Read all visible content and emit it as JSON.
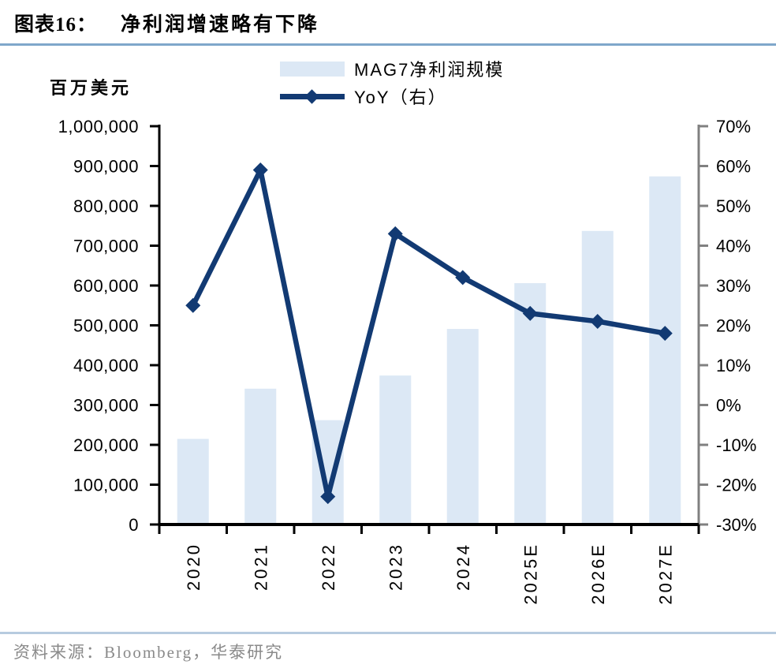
{
  "header": {
    "label": "图表16：",
    "title": "净利润增速略有下降"
  },
  "legend": [
    {
      "label": "MAG7净利润规模",
      "swatch": "bar-swatch"
    },
    {
      "label": "YoY（右）",
      "swatch": "line-swatch"
    }
  ],
  "chart_data": {
    "type": "combo",
    "title": "净利润增速略有下降",
    "categories": [
      "2020",
      "2021",
      "2022",
      "2023",
      "2024",
      "2025E",
      "2026E",
      "2027E"
    ],
    "series": [
      {
        "name": "MAG7净利润规模",
        "type": "bar",
        "axis": "left",
        "values": [
          215000,
          341000,
          262000,
          374000,
          491000,
          606000,
          737000,
          874000
        ]
      },
      {
        "name": "YoY（右）",
        "type": "line",
        "axis": "right",
        "unit": "%",
        "values": [
          25,
          59,
          -23,
          43,
          32,
          23,
          21,
          18
        ]
      }
    ],
    "left_axis": {
      "title": "百万美元",
      "min": 0,
      "max": 1000000,
      "step": 100000,
      "tick_labels": [
        "1,000,000",
        "900,000",
        "800,000",
        "700,000",
        "600,000",
        "500,000",
        "400,000",
        "300,000",
        "200,000",
        "100,000",
        "0"
      ]
    },
    "right_axis": {
      "min": -30,
      "max": 70,
      "step": 10,
      "tick_labels": [
        "70%",
        "60%",
        "50%",
        "40%",
        "30%",
        "20%",
        "10%",
        "0%",
        "-10%",
        "-20%",
        "-30%"
      ]
    },
    "legend_position": "top",
    "grid": false
  },
  "footer": {
    "source": "资料来源：Bloomberg，华泰研究"
  },
  "colors": {
    "bar": "#dce8f5",
    "line": "#123a73",
    "axis": "#000000",
    "right_axis": "#808080",
    "tick_label": "#000000",
    "title_rule": "#7fa7ca",
    "footer_rule": "#b7cbdf",
    "footer_text": "#8a8a8a"
  }
}
